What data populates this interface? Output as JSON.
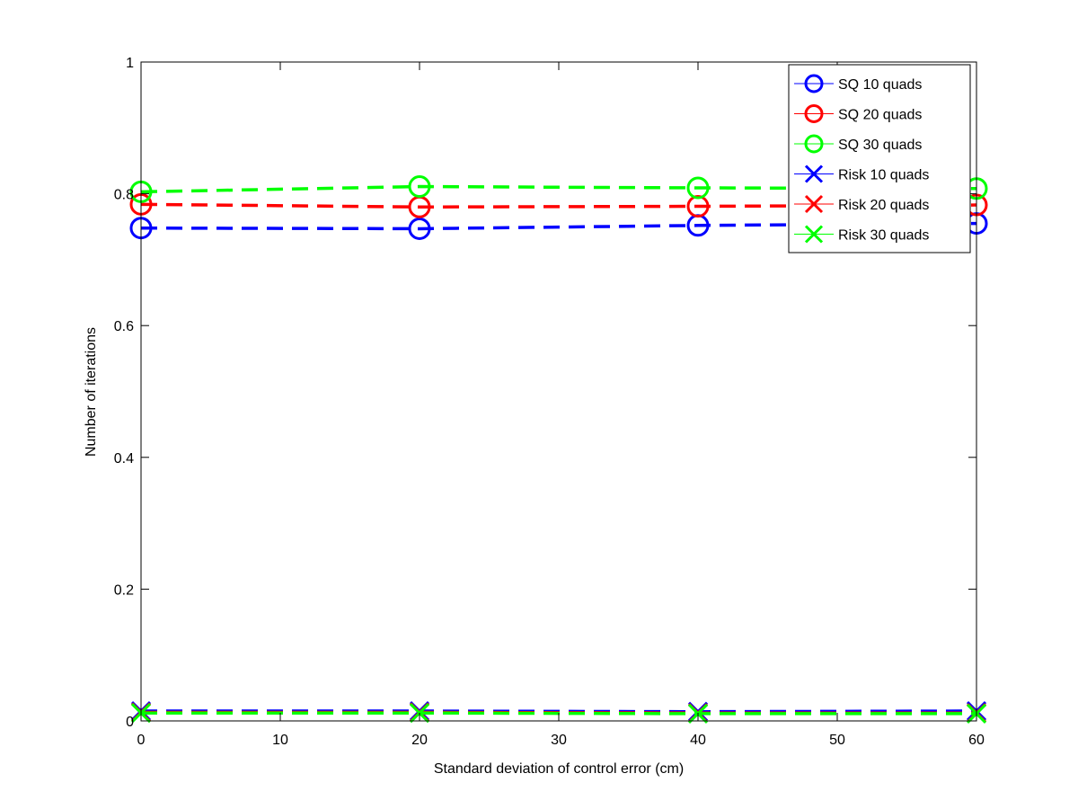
{
  "chart_data": {
    "type": "line",
    "title": "",
    "xlabel": "Standard deviation of control error (cm)",
    "ylabel": "Number of iterations",
    "xlim": [
      0,
      60
    ],
    "ylim": [
      0,
      1
    ],
    "xticks": [
      0,
      10,
      20,
      30,
      40,
      50,
      60
    ],
    "yticks": [
      0,
      0.2,
      0.4,
      0.6,
      0.8,
      1
    ],
    "xtick_labels": [
      "0",
      "10",
      "20",
      "30",
      "40",
      "50",
      "60"
    ],
    "ytick_labels": [
      "0",
      "0.2",
      "0.4",
      "0.6",
      "0.8",
      "1"
    ],
    "grid": false,
    "legend_position": "top-right",
    "x": [
      0,
      20,
      40,
      60
    ],
    "series": [
      {
        "name": "SQ 10 quads",
        "values": [
          0.748,
          0.747,
          0.752,
          0.755
        ],
        "color": "#0000ff",
        "marker": "circle"
      },
      {
        "name": "SQ 20 quads",
        "values": [
          0.784,
          0.78,
          0.781,
          0.783
        ],
        "color": "#ff0000",
        "marker": "circle"
      },
      {
        "name": "SQ 30 quads",
        "values": [
          0.803,
          0.811,
          0.809,
          0.808
        ],
        "color": "#00ff00",
        "marker": "circle"
      },
      {
        "name": "Risk 10 quads",
        "values": [
          0.015,
          0.015,
          0.014,
          0.015
        ],
        "color": "#0000ff",
        "marker": "x"
      },
      {
        "name": "Risk 20 quads",
        "values": [
          0.013,
          0.013,
          0.012,
          0.012
        ],
        "color": "#ff0000",
        "marker": "x"
      },
      {
        "name": "Risk 30 quads",
        "values": [
          0.012,
          0.012,
          0.011,
          0.011
        ],
        "color": "#00ff00",
        "marker": "x"
      }
    ]
  }
}
